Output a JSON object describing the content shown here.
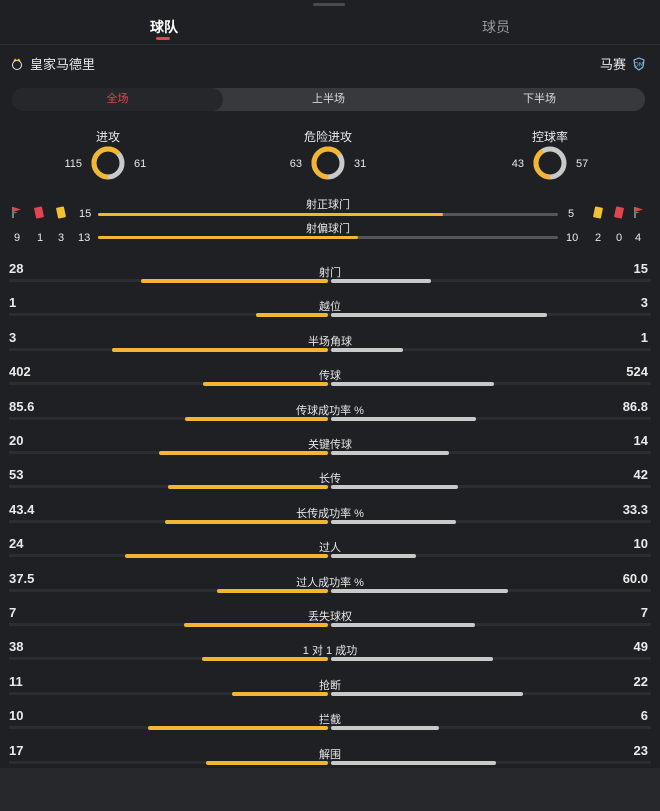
{
  "tabs": [
    {
      "label": "球队",
      "active": true
    },
    {
      "label": "球员",
      "active": false
    }
  ],
  "teams": {
    "home": {
      "name": "皇家马德里",
      "crest": "real-madrid-crest-icon"
    },
    "away": {
      "name": "马赛",
      "crest": "marseille-crest-icon"
    }
  },
  "periods": [
    {
      "label": "全场",
      "active": true
    },
    {
      "label": "上半场",
      "active": false
    },
    {
      "label": "下半场",
      "active": false
    }
  ],
  "donuts": [
    {
      "title": "进攻",
      "home": 115,
      "away": 61
    },
    {
      "title": "危险进攻",
      "home": 63,
      "away": 31
    },
    {
      "title": "控球率",
      "home": 43,
      "away": 57
    }
  ],
  "cards": {
    "home": {
      "corners": "9",
      "red": "1",
      "yellow": "3",
      "icons": [
        "corner-flag-icon",
        "red-card-icon",
        "yellow-card-icon"
      ]
    },
    "away": {
      "yellow": "2",
      "red": "0",
      "corners": "4",
      "icons": [
        "yellow-card-icon",
        "red-card-icon",
        "corner-flag-icon"
      ]
    }
  },
  "shots": [
    {
      "label": "射正球门",
      "home": 15,
      "away": 5
    },
    {
      "label": "射偏球门",
      "home": 13,
      "away": 10
    }
  ],
  "stats": [
    {
      "label": "射门",
      "home": "28",
      "away": "15"
    },
    {
      "label": "越位",
      "home": "1",
      "away": "3"
    },
    {
      "label": "半场角球",
      "home": "3",
      "away": "1"
    },
    {
      "label": "传球",
      "home": "402",
      "away": "524"
    },
    {
      "label": "传球成功率 %",
      "home": "85.6",
      "away": "86.8"
    },
    {
      "label": "关键传球",
      "home": "20",
      "away": "14"
    },
    {
      "label": "长传",
      "home": "53",
      "away": "42"
    },
    {
      "label": "长传成功率 %",
      "home": "43.4",
      "away": "33.3"
    },
    {
      "label": "过人",
      "home": "24",
      "away": "10"
    },
    {
      "label": "过人成功率 %",
      "home": "37.5",
      "away": "60.0"
    },
    {
      "label": "丢失球权",
      "home": "7",
      "away": "7"
    },
    {
      "label": "1 对 1 成功",
      "home": "38",
      "away": "49"
    },
    {
      "label": "抢断",
      "home": "11",
      "away": "22"
    },
    {
      "label": "拦截",
      "home": "10",
      "away": "6"
    },
    {
      "label": "解围",
      "home": "17",
      "away": "23"
    }
  ],
  "colors": {
    "home": "#f2b632",
    "away": "#c9c9c9",
    "accent": "#e2454d",
    "background": "#1f2023"
  }
}
